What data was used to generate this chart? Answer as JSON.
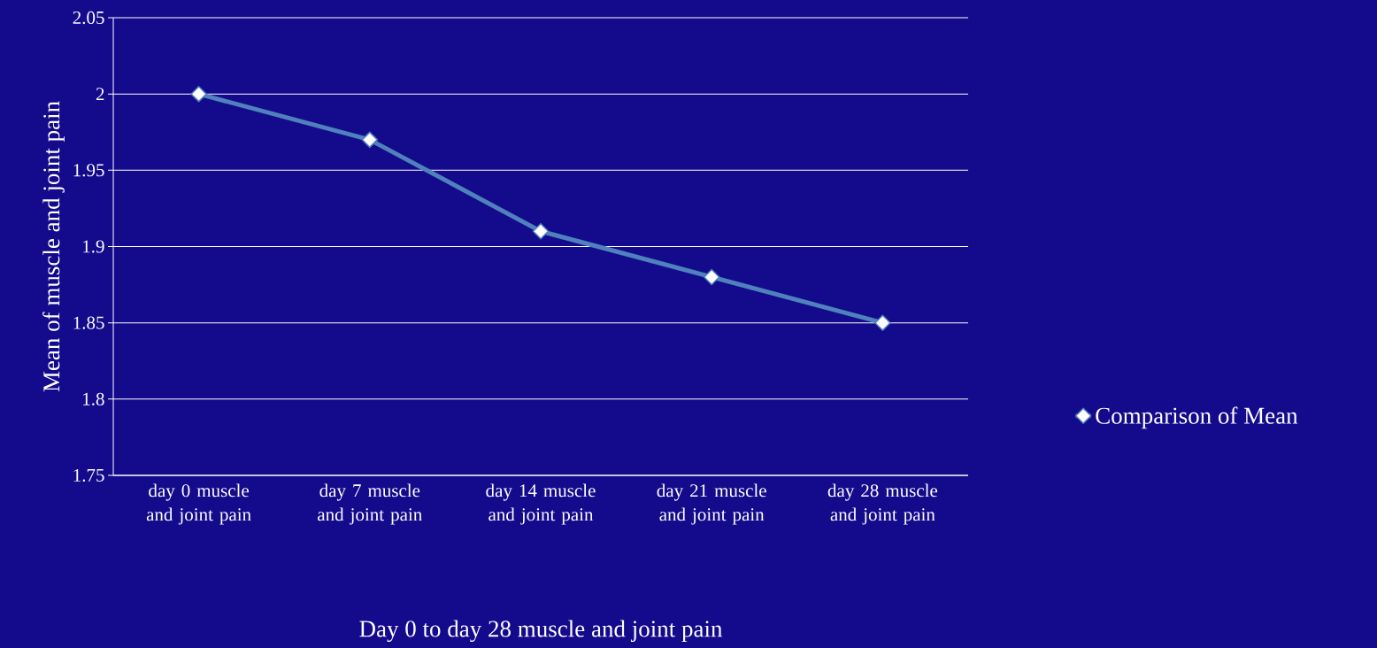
{
  "chart_data": {
    "type": "line",
    "xlabel": "Day 0 to day 28 muscle and joint pain",
    "ylabel": "Mean of muscle and joint pain",
    "categories": [
      "day 0 muscle and joint pain",
      "day 7 muscle and joint pain",
      "day 14 muscle and joint pain",
      "day 21 muscle and joint pain",
      "day 28 muscle and joint pain"
    ],
    "series": [
      {
        "name": "Comparison of Mean",
        "color": "#4f81bd",
        "values": [
          2.0,
          1.97,
          1.91,
          1.88,
          1.85
        ]
      }
    ],
    "ylim": [
      1.75,
      2.05
    ],
    "yticks": [
      1.75,
      1.8,
      1.85,
      1.9,
      1.95,
      2,
      2.05
    ],
    "grid": "y",
    "legend": "right",
    "marker": "diamond",
    "line_style": "solid"
  }
}
